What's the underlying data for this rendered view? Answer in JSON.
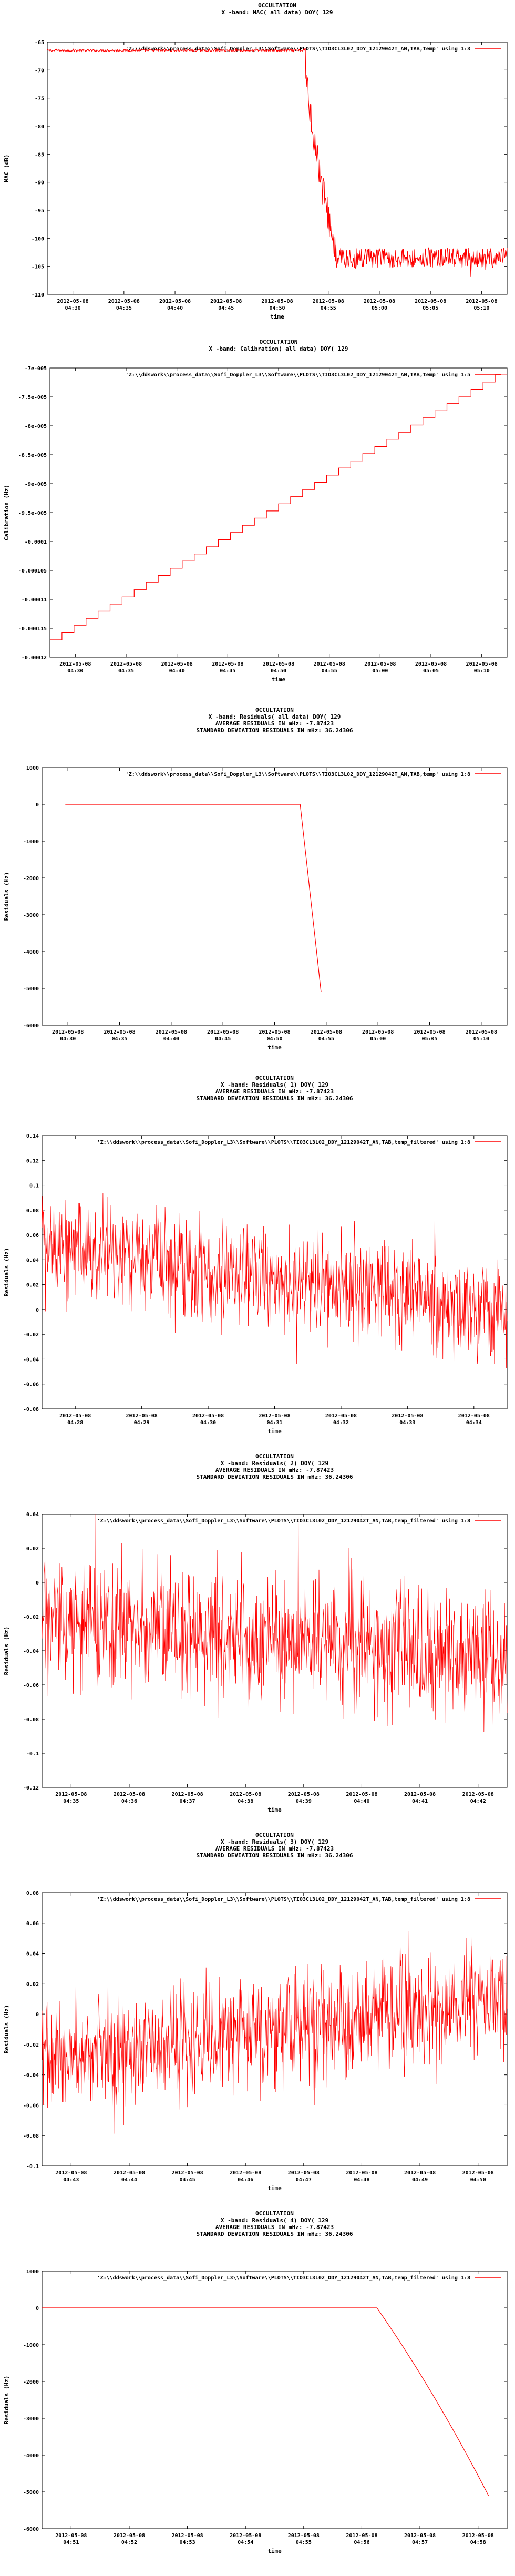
{
  "page": {
    "background": "#ffffff",
    "trace_color": "#ff0000",
    "frame_color": "#000000"
  },
  "chart_data": [
    {
      "type": "line",
      "title_lines": [
        "OCCULTATION",
        "X -band: MAC( all data) DOY( 129"
      ],
      "legend": "'Z:\\\\ddswork\\\\process_data\\\\Sofi_Doppler_L3\\\\Software\\\\PLOTS\\\\TIO3CL3L02_DDY_12129042T_AN,TAB,temp' using 1:3",
      "legend_position": "top-right",
      "xlabel": "time",
      "ylabel": "MAC (dB)",
      "ylim": [
        -110,
        -65
      ],
      "yticks": [
        "-65",
        "-70",
        "-75",
        "-80",
        "-85",
        "-90",
        "-95",
        "-100",
        "-105",
        "-110"
      ],
      "xticks": [
        [
          "2012-05-08",
          "04:30"
        ],
        [
          "2012-05-08",
          "04:35"
        ],
        [
          "2012-05-08",
          "04:40"
        ],
        [
          "2012-05-08",
          "04:45"
        ],
        [
          "2012-05-08",
          "04:50"
        ],
        [
          "2012-05-08",
          "04:55"
        ],
        [
          "2012-05-08",
          "05:00"
        ],
        [
          "2012-05-08",
          "05:05"
        ],
        [
          "2012-05-08",
          "05:10"
        ]
      ],
      "series": [
        {
          "shape": "step_drop",
          "hold": -66.5,
          "drop_at": 0.56,
          "drop_end": 0.63,
          "floor": -103.5,
          "noise": 1.8
        }
      ]
    },
    {
      "type": "line",
      "title_lines": [
        "OCCULTATION",
        "X -band: Calibration( all data) DOY( 129"
      ],
      "legend": "'Z:\\\\ddswork\\\\process_data\\\\Sofi_Doppler_L3\\\\Software\\\\PLOTS\\\\TIO3CL3L02_DDY_12129042T_AN,TAB,temp' using 1:5",
      "legend_position": "top-right",
      "xlabel": "time",
      "ylabel": "Calibration (Hz)",
      "ylim": [
        -0.00012,
        -7e-05
      ],
      "yticks": [
        "-7e-005",
        "-7.5e-005",
        "-8e-005",
        "-8.5e-005",
        "-9e-005",
        "-9.5e-005",
        "-0.0001",
        "-0.000105",
        "-0.00011",
        "-0.000115",
        "-0.00012"
      ],
      "xticks": [
        [
          "2012-05-08",
          "04:30"
        ],
        [
          "2012-05-08",
          "04:35"
        ],
        [
          "2012-05-08",
          "04:40"
        ],
        [
          "2012-05-08",
          "04:45"
        ],
        [
          "2012-05-08",
          "04:50"
        ],
        [
          "2012-05-08",
          "04:55"
        ],
        [
          "2012-05-08",
          "05:00"
        ],
        [
          "2012-05-08",
          "05:05"
        ],
        [
          "2012-05-08",
          "05:10"
        ]
      ],
      "series": [
        {
          "shape": "staircase",
          "from": -0.000117,
          "to": -7.12e-05,
          "steps": 38
        }
      ]
    },
    {
      "type": "line",
      "title_lines": [
        "OCCULTATION",
        "X -band: Residuals( all data) DOY( 129",
        "AVERAGE RESIDUALS IN mHz: -7.87423",
        "STANDARD DEVIATION RESIDUALS IN mHz: 36.24306"
      ],
      "legend": "'Z:\\\\ddswork\\\\process_data\\\\Sofi_Doppler_L3\\\\Software\\\\PLOTS\\\\TIO3CL3L02_DDY_12129042T_AN,TAB,temp' using 1:8",
      "legend_position": "top-right",
      "xlabel": "time",
      "ylabel": "Residuals (Hz)",
      "ylim": [
        -6000,
        1000
      ],
      "yticks": [
        "1000",
        "0",
        "-1000",
        "-2000",
        "-3000",
        "-4000",
        "-5000",
        "-6000"
      ],
      "xticks": [
        [
          "2012-05-08",
          "04:30"
        ],
        [
          "2012-05-08",
          "04:35"
        ],
        [
          "2012-05-08",
          "04:40"
        ],
        [
          "2012-05-08",
          "04:45"
        ],
        [
          "2012-05-08",
          "04:50"
        ],
        [
          "2012-05-08",
          "04:55"
        ],
        [
          "2012-05-08",
          "05:00"
        ],
        [
          "2012-05-08",
          "05:05"
        ],
        [
          "2012-05-08",
          "05:10"
        ]
      ],
      "series": [
        {
          "shape": "flat_then_drop",
          "hold": 0,
          "drop_at": 0.555,
          "end_at": 0.6,
          "end_value": -5100
        }
      ]
    },
    {
      "type": "line",
      "title_lines": [
        "OCCULTATION",
        "X -band: Residuals( 1) DOY( 129",
        "AVERAGE RESIDUALS IN mHz: -7.87423",
        "STANDARD DEVIATION RESIDUALS IN mHz: 36.24306"
      ],
      "legend": "'Z:\\\\ddswork\\\\process_data\\\\Sofi_Doppler_L3\\\\Software\\\\PLOTS\\\\TIO3CL3L02_DDY_12129042T_AN,TAB,temp_filtered' using 1:8",
      "legend_position": "top-right",
      "xlabel": "time",
      "ylabel": "Residuals (Hz)",
      "ylim": [
        -0.08,
        0.14
      ],
      "yticks": [
        "0.14",
        "0.12",
        "0.1",
        "0.08",
        "0.06",
        "0.04",
        "0.02",
        "0",
        "-0.02",
        "-0.04",
        "-0.06",
        "-0.08"
      ],
      "xticks": [
        [
          "2012-05-08",
          "04:28"
        ],
        [
          "2012-05-08",
          "04:29"
        ],
        [
          "2012-05-08",
          "04:30"
        ],
        [
          "2012-05-08",
          "04:31"
        ],
        [
          "2012-05-08",
          "04:32"
        ],
        [
          "2012-05-08",
          "04:33"
        ],
        [
          "2012-05-08",
          "04:34"
        ]
      ],
      "series": [
        {
          "shape": "noise",
          "start": 0.05,
          "end": 0.0,
          "spread": 0.045
        }
      ]
    },
    {
      "type": "line",
      "title_lines": [
        "OCCULTATION",
        "X -band: Residuals( 2) DOY( 129",
        "AVERAGE RESIDUALS IN mHz: -7.87423",
        "STANDARD DEVIATION RESIDUALS IN mHz: 36.24306"
      ],
      "legend": "'Z:\\\\ddswork\\\\process_data\\\\Sofi_Doppler_L3\\\\Software\\\\PLOTS\\\\TIO3CL3L02_DDY_12129042T_AN,TAB,temp_filtered' using 1:8",
      "legend_position": "top-right",
      "xlabel": "time",
      "ylabel": "Residuals (Hz)",
      "ylim": [
        -0.12,
        0.04
      ],
      "yticks": [
        "0.04",
        "0.02",
        "0",
        "-0.02",
        "-0.04",
        "-0.06",
        "-0.08",
        "-0.1",
        "-0.12"
      ],
      "xticks": [
        [
          "2012-05-08",
          "04:35"
        ],
        [
          "2012-05-08",
          "04:36"
        ],
        [
          "2012-05-08",
          "04:37"
        ],
        [
          "2012-05-08",
          "04:38"
        ],
        [
          "2012-05-08",
          "04:39"
        ],
        [
          "2012-05-08",
          "04:40"
        ],
        [
          "2012-05-08",
          "04:41"
        ],
        [
          "2012-05-08",
          "04:42"
        ]
      ],
      "series": [
        {
          "shape": "noise",
          "start": -0.02,
          "end": -0.045,
          "spread": 0.04
        }
      ]
    },
    {
      "type": "line",
      "title_lines": [
        "OCCULTATION",
        "X -band: Residuals( 3) DOY( 129",
        "AVERAGE RESIDUALS IN mHz: -7.87423",
        "STANDARD DEVIATION RESIDUALS IN mHz: 36.24306"
      ],
      "legend": "'Z:\\\\ddswork\\\\process_data\\\\Sofi_Doppler_L3\\\\Software\\\\PLOTS\\\\TIO3CL3L02_DDY_12129042T_AN,TAB,temp_filtered' using 1:8",
      "legend_position": "top-right",
      "xlabel": "time",
      "ylabel": "Residuals (Hz)",
      "ylim": [
        -0.1,
        0.08
      ],
      "yticks": [
        "0.08",
        "0.06",
        "0.04",
        "0.02",
        "0",
        "-0.02",
        "-0.04",
        "-0.06",
        "-0.08",
        "-0.1"
      ],
      "xticks": [
        [
          "2012-05-08",
          "04:43"
        ],
        [
          "2012-05-08",
          "04:44"
        ],
        [
          "2012-05-08",
          "04:45"
        ],
        [
          "2012-05-08",
          "04:46"
        ],
        [
          "2012-05-08",
          "04:47"
        ],
        [
          "2012-05-08",
          "04:48"
        ],
        [
          "2012-05-08",
          "04:49"
        ],
        [
          "2012-05-08",
          "04:50"
        ]
      ],
      "series": [
        {
          "shape": "noise",
          "start": -0.03,
          "end": 0.01,
          "spread": 0.04
        }
      ]
    },
    {
      "type": "line",
      "title_lines": [
        "OCCULTATION",
        "X -band: Residuals( 4) DOY( 129",
        "AVERAGE RESIDUALS IN mHz: -7.87423",
        "STANDARD DEVIATION RESIDUALS IN mHz: 36.24306"
      ],
      "legend": "'Z:\\\\ddswork\\\\process_data\\\\Sofi_Doppler_L3\\\\Software\\\\PLOTS\\\\TIO3CL3L02_DDY_12129042T_AN,TAB,temp_filtered' using 1:8",
      "legend_position": "top-right",
      "xlabel": "time",
      "ylabel": "Residuals (Hz)",
      "ylim": [
        -6000,
        1000
      ],
      "yticks": [
        "1000",
        "0",
        "-1000",
        "-2000",
        "-3000",
        "-4000",
        "-5000",
        "-6000"
      ],
      "xticks": [
        [
          "2012-05-08",
          "04:51"
        ],
        [
          "2012-05-08",
          "04:52"
        ],
        [
          "2012-05-08",
          "04:53"
        ],
        [
          "2012-05-08",
          "04:54"
        ],
        [
          "2012-05-08",
          "04:55"
        ],
        [
          "2012-05-08",
          "04:56"
        ],
        [
          "2012-05-08",
          "04:57"
        ],
        [
          "2012-05-08",
          "04:58"
        ]
      ],
      "series": [
        {
          "shape": "flat_then_curve",
          "hold": 0,
          "drop_at": 0.72,
          "end_at": 0.96,
          "end_value": -5100
        }
      ]
    }
  ]
}
